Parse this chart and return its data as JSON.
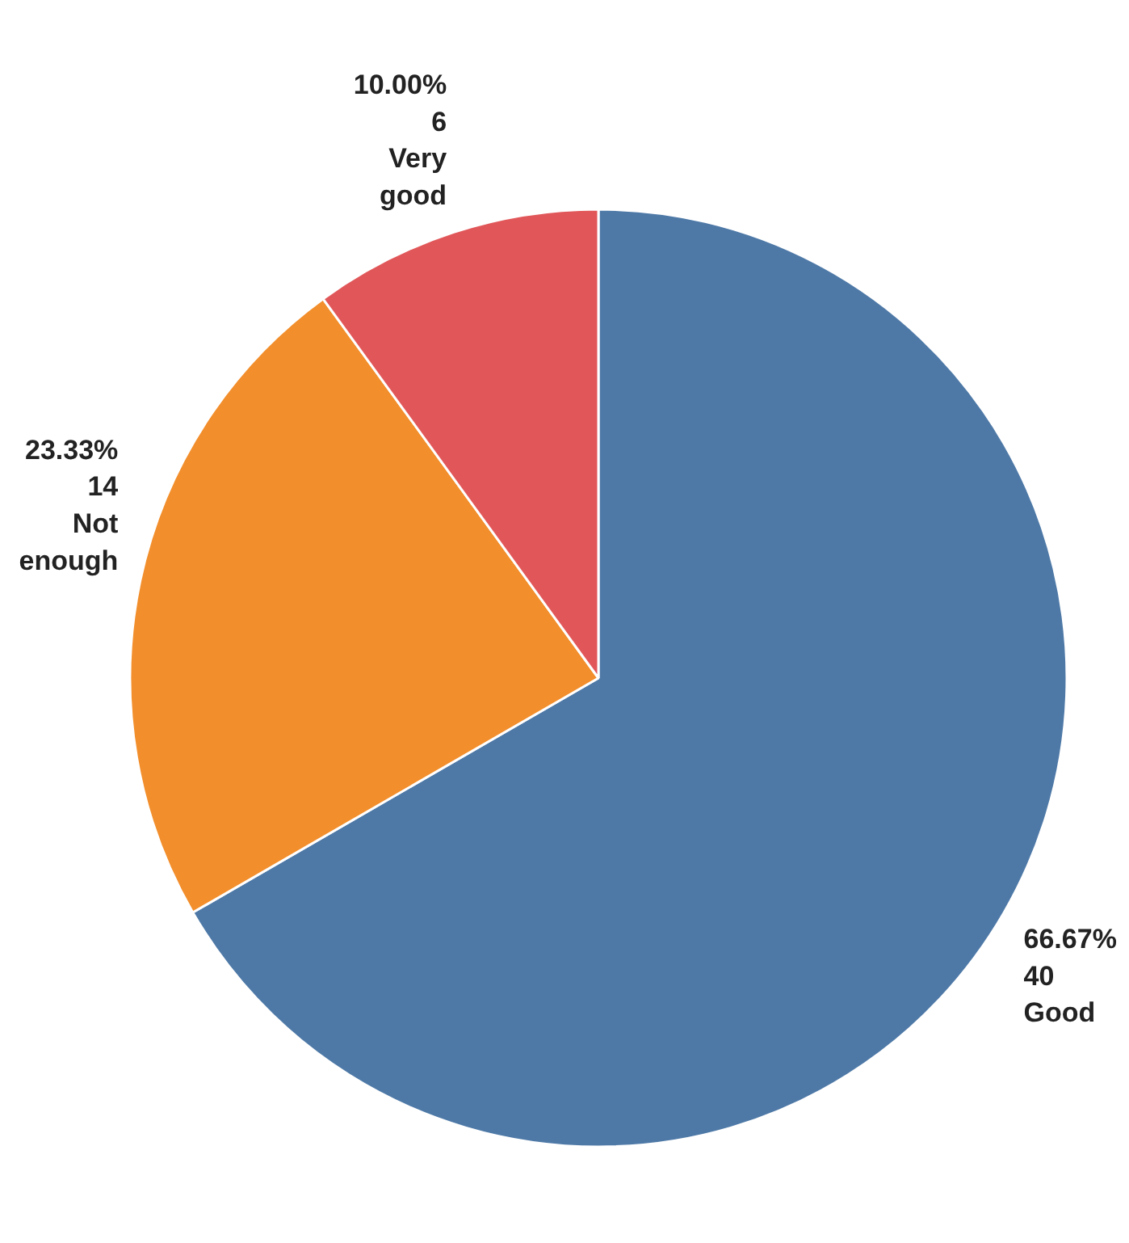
{
  "chart_data": {
    "type": "pie",
    "categories": [
      "Good",
      "Not enough",
      "Very good"
    ],
    "values": [
      40,
      14,
      6
    ],
    "colors": [
      "#4e79a7",
      "#f28e2b",
      "#e15759"
    ],
    "value_labels": [
      "66.67%\n40",
      "23.33%\n14",
      "10.00%\n6"
    ]
  }
}
